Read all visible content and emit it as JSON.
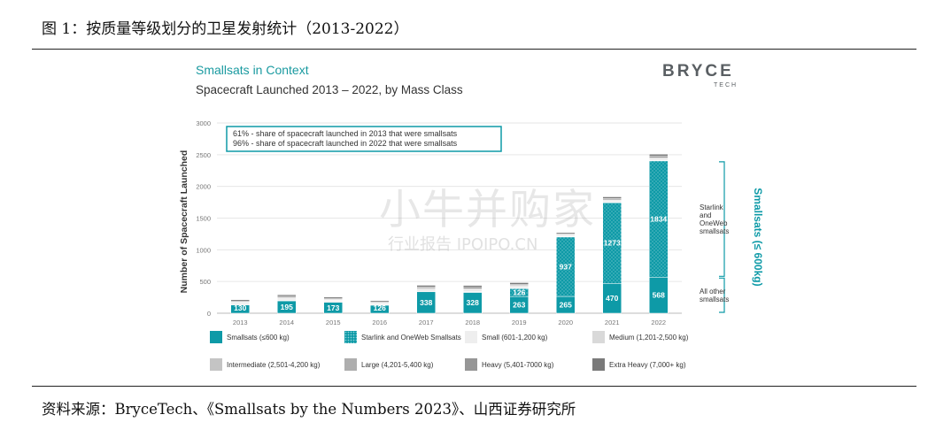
{
  "figure": {
    "title": "图 1：按质量等级划分的卫星发射统计（2013-2022）",
    "source": "资料来源：BryceTech、《Smallsats by the Numbers 2023》、山西证券研究所"
  },
  "panel": {
    "title": "Smallsats in Context",
    "subtitle": "Spacecraft Launched 2013 – 2022, by Mass Class",
    "logo_main": "BRYCE",
    "logo_sub": "TECH"
  },
  "watermark": {
    "main": "小牛并购家",
    "sub": "行业报告 IPOIPO.CN"
  },
  "chart_data": {
    "type": "bar",
    "stacked": true,
    "ylabel": "Number of Spacecraft Launched",
    "ylim": [
      0,
      3000
    ],
    "yticks": [
      0,
      500,
      1000,
      1500,
      2000,
      2500,
      3000
    ],
    "categories": [
      "2013",
      "2014",
      "2015",
      "2016",
      "2017",
      "2018",
      "2019",
      "2020",
      "2021",
      "2022"
    ],
    "series": [
      {
        "name": "Smallsats (≤600 kg)",
        "key": "smallsats",
        "color": "#0e9aa7",
        "values": [
          130,
          195,
          173,
          126,
          338,
          328,
          263,
          265,
          470,
          568
        ]
      },
      {
        "name": "Starlink and OneWeb Smallsats",
        "key": "starlink",
        "color": "#0e9aa7",
        "pattern": "dots",
        "values": [
          0,
          0,
          0,
          0,
          0,
          0,
          126,
          937,
          1273,
          1834
        ]
      },
      {
        "name": "Small (601-1,200 kg)",
        "key": "small",
        "color": "#eeeeee",
        "values": [
          12,
          14,
          12,
          10,
          16,
          18,
          14,
          8,
          10,
          12
        ]
      },
      {
        "name": "Medium (1,201-2,500 kg)",
        "key": "medium",
        "color": "#d9d9d9",
        "values": [
          15,
          15,
          13,
          12,
          14,
          16,
          14,
          12,
          13,
          14
        ]
      },
      {
        "name": "Intermediate (2,501-4,200 kg)",
        "key": "intermediate",
        "color": "#c4c4c4",
        "values": [
          10,
          12,
          10,
          10,
          12,
          12,
          12,
          10,
          11,
          12
        ]
      },
      {
        "name": "Large (4,201-5,400 kg)",
        "key": "large",
        "color": "#aeaeae",
        "values": [
          10,
          12,
          10,
          8,
          12,
          12,
          10,
          8,
          10,
          12
        ]
      },
      {
        "name": "Heavy (5,401-7000 kg)",
        "key": "heavy",
        "color": "#969696",
        "values": [
          15,
          18,
          16,
          14,
          20,
          22,
          18,
          14,
          20,
          24
        ]
      },
      {
        "name": "Extra Heavy (7,000+ kg)",
        "key": "extraheavy",
        "color": "#7a7a7a",
        "values": [
          20,
          25,
          20,
          18,
          28,
          30,
          25,
          18,
          28,
          32
        ]
      }
    ],
    "data_labels": {
      "smallsats": [
        "130",
        "195",
        "173",
        "126",
        "338",
        "328",
        "263",
        "265",
        "470",
        "568"
      ],
      "starlink": [
        "",
        "",
        "",
        "",
        "",
        "",
        "126",
        "937",
        "1273",
        "1834"
      ]
    },
    "annotation_box": [
      "61% - share of spacecraft launched in 2013 that were smallsats",
      "96% - share of spacecraft launched in 2022 that were smallsats"
    ],
    "brackets": [
      {
        "text": "Starlink\nand\nOneWeb\nsmallsats",
        "from": 568,
        "to": 2402
      },
      {
        "text": "All other\nsmallsats",
        "from": 0,
        "to": 568
      }
    ],
    "side_label": "Smallsats (≤ 600kg)",
    "grid": true,
    "legend_position": "bottom",
    "accent_color": "#0e9aa7"
  }
}
